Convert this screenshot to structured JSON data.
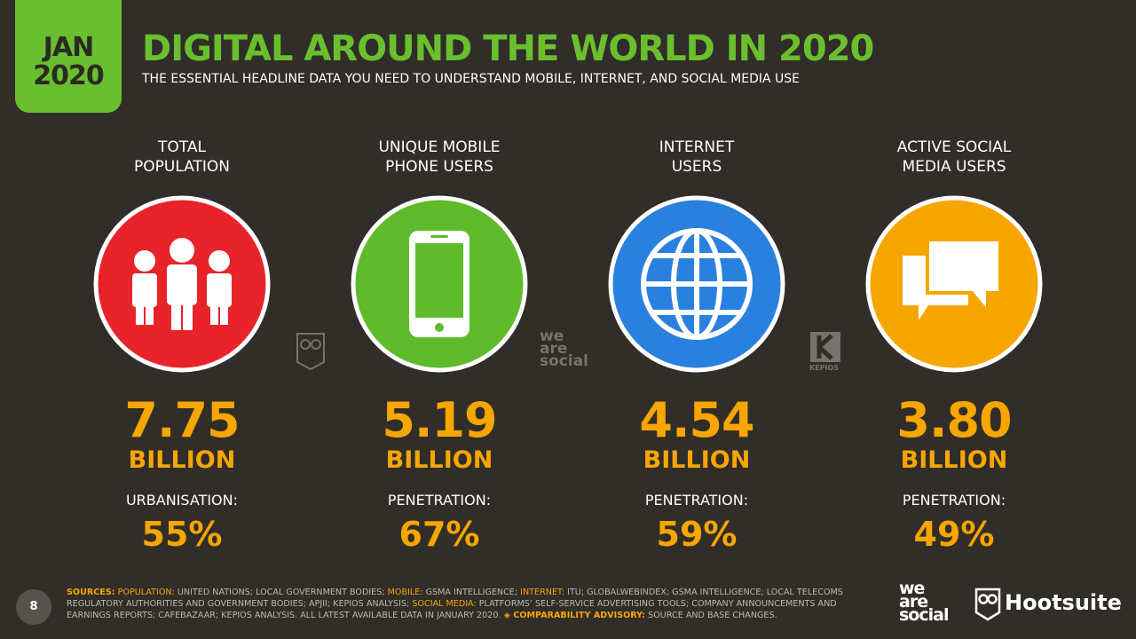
{
  "header": {
    "badge_month": "JAN",
    "badge_year": "2020",
    "title": "DIGITAL AROUND THE WORLD IN 2020",
    "subtitle": "THE ESSENTIAL HEADLINE DATA YOU NEED TO UNDERSTAND MOBILE, INTERNET, AND SOCIAL MEDIA USE"
  },
  "stats": [
    {
      "label": [
        "TOTAL",
        "POPULATION"
      ],
      "value": "7.75",
      "unit": "BILLION",
      "sub_label": "URBANISATION:",
      "sub_value": "55%"
    },
    {
      "label": [
        "UNIQUE MOBILE",
        "PHONE USERS"
      ],
      "value": "5.19",
      "unit": "BILLION",
      "sub_label": "PENETRATION:",
      "sub_value": "67%"
    },
    {
      "label": [
        "INTERNET",
        "USERS"
      ],
      "value": "4.54",
      "unit": "BILLION",
      "sub_label": "PENETRATION:",
      "sub_value": "59%"
    },
    {
      "label": [
        "ACTIVE SOCIAL",
        "MEDIA USERS"
      ],
      "value": "3.80",
      "unit": "BILLION",
      "sub_label": "PENETRATION:",
      "sub_value": "49%"
    }
  ],
  "watermarks": {
    "we_are_social": [
      "we",
      "are",
      "social"
    ],
    "kepios": "KEPIOS"
  },
  "footer": {
    "page_number": "8",
    "sources": [
      "SOURCES:",
      "POPULATION:",
      "UNITED NATIONS; LOCAL GOVERNMENT BODIES;",
      "MOBILE:",
      "GSMA INTELLIGENCE;",
      "INTERNET:",
      "ITU; GLOBALWEBINDEX; GSMA INTELLIGENCE; LOCAL TELECOMS REGULATORY AUTHORITIES AND GOVERNMENT BODIES; APJII; KEPIOS ANALYSIS;",
      "SOCIAL MEDIA:",
      "PLATFORMS’ SELF-SERVICE ADVERTISING TOOLS; COMPANY ANNOUNCEMENTS AND EARNINGS REPORTS; CAFEBAZAAR; KEPIOS ANALYSIS. ALL LATEST AVAILABLE DATA IN JANUARY 2020.",
      "◈ COMPARABILITY ADVISORY:",
      "SOURCE AND BASE CHANGES."
    ],
    "logo_we_are_social": [
      "we",
      "are",
      "social"
    ],
    "logo_hootsuite": "Hootsuite"
  }
}
